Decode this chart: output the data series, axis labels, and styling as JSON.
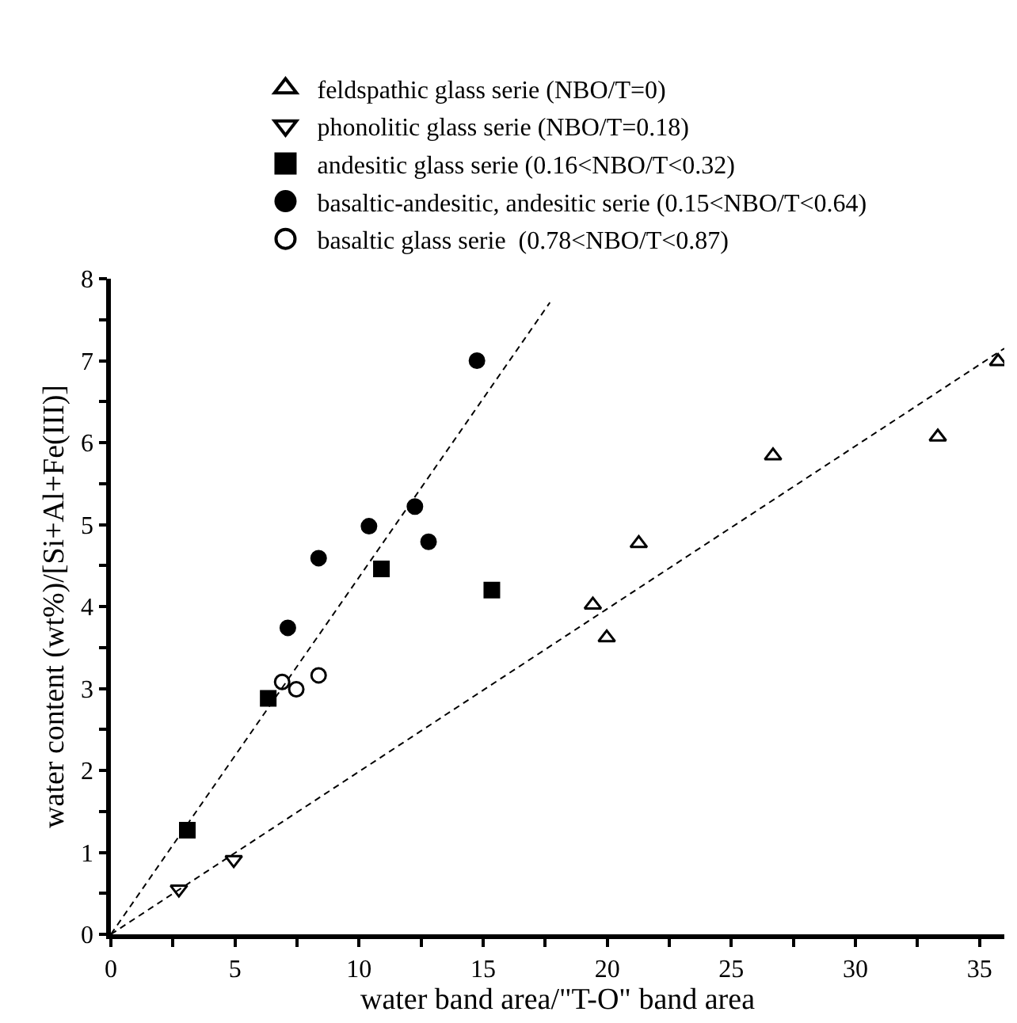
{
  "chart_data": {
    "type": "scatter",
    "xlabel": "water band area/\"T-O\" band area",
    "ylabel": "water content (wt%)/[Si+Al+Fe(III)]",
    "xlim": [
      0,
      36
    ],
    "ylim": [
      0,
      8
    ],
    "xticks": [
      0,
      {
        "value": 2.5,
        "label": null
      },
      5,
      {
        "value": 7.5,
        "label": null
      },
      10,
      {
        "value": 12.5,
        "label": null
      },
      15,
      {
        "value": 17.5,
        "label": null
      },
      20,
      {
        "value": 22.5,
        "label": null
      },
      25,
      {
        "value": 27.5,
        "label": null
      },
      30,
      {
        "value": 32.5,
        "label": null
      },
      35
    ],
    "yticks": [
      0,
      {
        "value": 0.5,
        "label": null
      },
      1,
      {
        "value": 1.5,
        "label": null
      },
      2,
      {
        "value": 2.5,
        "label": null
      },
      3,
      {
        "value": 3.5,
        "label": null
      },
      4,
      {
        "value": 4.5,
        "label": null
      },
      5,
      {
        "value": 5.5,
        "label": null
      },
      6,
      {
        "value": 6.5,
        "label": null
      },
      7,
      {
        "value": 7.5,
        "label": null
      },
      8
    ],
    "grid": false,
    "legend": "top",
    "series": [
      {
        "name": "feldspathic glass serie (NBO/T=0)",
        "color": "#000000",
        "marker": "triangle-up-open",
        "x": [
          19.42,
          19.98,
          21.27,
          26.68,
          33.32,
          35.75
        ],
        "values": [
          4.02,
          3.62,
          4.77,
          5.84,
          6.07,
          6.99
        ]
      },
      {
        "name": "phonolitic glass serie (NBO/T=0.18)",
        "color": "#000000",
        "marker": "triangle-down-open",
        "x": [
          2.74,
          4.95
        ],
        "values": [
          0.55,
          0.91
        ]
      },
      {
        "name": "andesitic glass serie (0.16<NBO/T<0.32)",
        "color": "#000000",
        "marker": "square",
        "x": [
          3.08,
          6.34,
          10.9,
          15.35
        ],
        "values": [
          1.27,
          2.88,
          4.46,
          4.2
        ]
      },
      {
        "name": "basaltic-andesitic, andesitic serie (0.15<NBO/T<0.64)",
        "color": "#000000",
        "marker": "circle",
        "x": [
          7.13,
          8.37,
          10.4,
          12.25,
          12.8,
          14.75
        ],
        "values": [
          3.74,
          4.59,
          4.98,
          5.22,
          4.79,
          7.0
        ]
      },
      {
        "name": "basaltic glass serie  (0.78<NBO/T<0.87)",
        "color": "#000000",
        "marker": "circle-open",
        "x": [
          6.9,
          7.47,
          8.37
        ],
        "values": [
          3.08,
          2.99,
          3.16
        ]
      },
      {
        "type": "line",
        "color": "#000000",
        "line_style": "dashed",
        "marker": "none",
        "x": [
          0,
          17.69
        ],
        "values": [
          0,
          7.71
        ]
      },
      {
        "type": "line",
        "color": "#000000",
        "line_style": "dashed",
        "marker": "none",
        "x": [
          0,
          36
        ],
        "values": [
          0,
          7.15
        ]
      }
    ]
  }
}
